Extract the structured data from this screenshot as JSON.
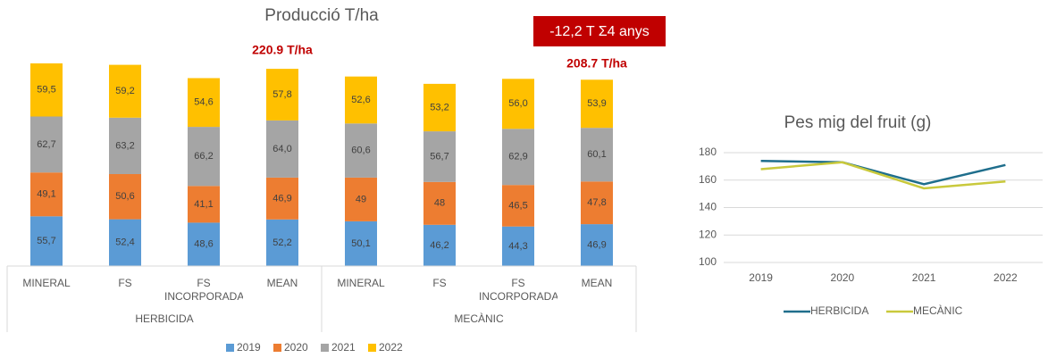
{
  "chart_data": [
    {
      "type": "stacked_bar",
      "title": "Producció T/ha",
      "categories": [
        "MINERAL",
        "FS",
        "FS INCORPORADA",
        "MEAN",
        "MINERAL",
        "FS",
        "FS INCORPORADA",
        "MEAN"
      ],
      "groups": [
        {
          "name": "HERBICIDA",
          "span": 4
        },
        {
          "name": "MECÀNIC",
          "span": 4
        }
      ],
      "series": [
        {
          "name": "2019",
          "color": "#5b9bd5",
          "values": [
            55.7,
            52.4,
            48.6,
            52.2,
            50.1,
            46.2,
            44.3,
            46.9
          ],
          "value_labels": [
            "55,7",
            "52,4",
            "48,6",
            "52,2",
            "50,1",
            "46,2",
            "44,3",
            "46,9"
          ]
        },
        {
          "name": "2020",
          "color": "#ed7d31",
          "values": [
            49.1,
            50.6,
            41.1,
            46.9,
            49,
            48,
            46.5,
            47.8
          ],
          "value_labels": [
            "49,1",
            "50,6",
            "41,1",
            "46,9",
            "49",
            "48",
            "46,5",
            "47,8"
          ]
        },
        {
          "name": "2021",
          "color": "#a5a5a5",
          "values": [
            62.7,
            63.2,
            66.2,
            64.0,
            60.6,
            56.7,
            62.9,
            60.1
          ],
          "value_labels": [
            "62,7",
            "63,2",
            "66,2",
            "64,0",
            "60,6",
            "56,7",
            "62,9",
            "60,1"
          ]
        },
        {
          "name": "2022",
          "color": "#ffc000",
          "values": [
            59.5,
            59.2,
            54.6,
            57.8,
            52.6,
            53.2,
            56.0,
            53.9
          ],
          "value_labels": [
            "59,5",
            "59,2",
            "54,6",
            "57,8",
            "52,6",
            "53,2",
            "56,0",
            "53,9"
          ]
        }
      ],
      "annotations": [
        "220.9 T/ha",
        "208.7 T/ha",
        "-12,2 T Σ4 anys"
      ]
    },
    {
      "type": "line",
      "title": "Pes mig del fruit (g)",
      "categories": [
        "2019",
        "2020",
        "2021",
        "2022"
      ],
      "series": [
        {
          "name": "HERBICIDA",
          "color": "#1f6e8c",
          "values": [
            174,
            173,
            157,
            171
          ]
        },
        {
          "name": "MECÀNIC",
          "color": "#c9c93c",
          "values": [
            168,
            173,
            154,
            159
          ]
        }
      ],
      "ylim": [
        100,
        180
      ],
      "yticks": [
        100,
        120,
        140,
        160,
        180
      ],
      "grid": true
    }
  ]
}
